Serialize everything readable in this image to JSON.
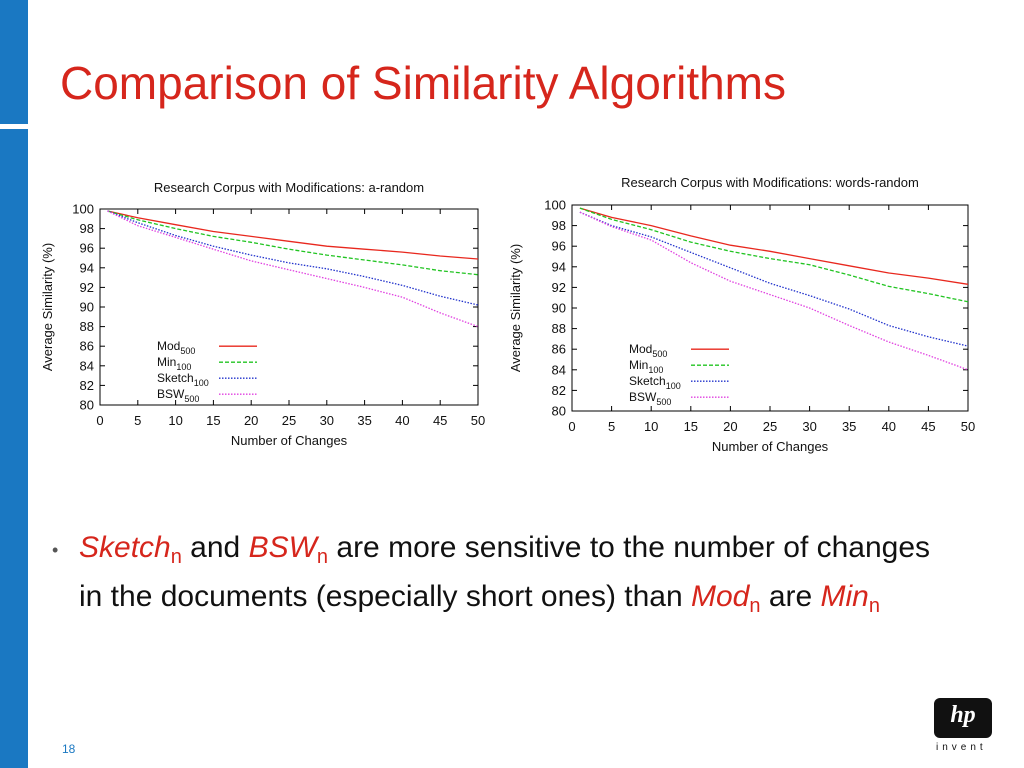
{
  "slide": {
    "title": "Comparison of Similarity Algorithms",
    "page_number": "18"
  },
  "bullet": {
    "sketch": "Sketch",
    "n1": "n",
    "t_and": " and ",
    "bsw": "BSW",
    "n2": "n",
    "t_rest": "  are more sensitive to the number of changes in the documents (especially short ones) than ",
    "mod": "Mod",
    "n3": "n",
    "t_are": " are ",
    "min": "Min",
    "n4": "n"
  },
  "logo": {
    "letters": "hp",
    "tagline": "invent"
  },
  "colors": {
    "title": "#d6261c",
    "sidebar": "#1a78c2",
    "emphasis": "#d6261c"
  },
  "chart_data": [
    {
      "type": "line",
      "title": "Research Corpus with Modifications: a-random",
      "xlabel": "Number of  Changes",
      "ylabel": "Average Similarity (%)",
      "xlim": [
        0,
        50
      ],
      "ylim": [
        80,
        100
      ],
      "xticks": [
        0,
        5,
        10,
        15,
        20,
        25,
        30,
        35,
        40,
        45,
        50
      ],
      "yticks": [
        80,
        82,
        84,
        86,
        88,
        90,
        92,
        94,
        96,
        98,
        100
      ],
      "grid": false,
      "legend_position": "left",
      "x": [
        1,
        5,
        10,
        15,
        20,
        25,
        30,
        35,
        40,
        45,
        50
      ],
      "series": [
        {
          "name": "Mod",
          "subscript": "500",
          "color": "#e8281e",
          "dash": "solid",
          "values": [
            99.8,
            99.1,
            98.4,
            97.7,
            97.2,
            96.7,
            96.2,
            95.9,
            95.6,
            95.2,
            94.9
          ]
        },
        {
          "name": "Min",
          "subscript": "100",
          "color": "#22c422",
          "dash": "dashed",
          "values": [
            99.8,
            98.9,
            98.0,
            97.2,
            96.6,
            95.9,
            95.3,
            94.8,
            94.3,
            93.7,
            93.3
          ]
        },
        {
          "name": "Sketch",
          "subscript": "100",
          "color": "#2233cc",
          "dash": "dotted",
          "values": [
            99.8,
            98.6,
            97.3,
            96.2,
            95.3,
            94.5,
            93.9,
            93.1,
            92.2,
            91.1,
            90.2
          ]
        },
        {
          "name": "BSW",
          "subscript": "500",
          "color": "#e040e0",
          "dash": "dotted",
          "values": [
            99.8,
            98.3,
            97.1,
            95.9,
            94.7,
            93.8,
            92.9,
            92.0,
            91.0,
            89.4,
            88.0
          ]
        }
      ]
    },
    {
      "type": "line",
      "title": "Research Corpus with Modifications: words-random",
      "xlabel": "Number of  Changes",
      "ylabel": "Average Similarity (%)",
      "xlim": [
        0,
        50
      ],
      "ylim": [
        80,
        100
      ],
      "xticks": [
        0,
        5,
        10,
        15,
        20,
        25,
        30,
        35,
        40,
        45,
        50
      ],
      "yticks": [
        80,
        82,
        84,
        86,
        88,
        90,
        92,
        94,
        96,
        98,
        100
      ],
      "grid": false,
      "legend_position": "left",
      "x": [
        1,
        5,
        10,
        15,
        20,
        25,
        30,
        35,
        40,
        45,
        50
      ],
      "series": [
        {
          "name": "Mod",
          "subscript": "500",
          "color": "#e8281e",
          "dash": "solid",
          "values": [
            99.7,
            98.8,
            98.0,
            97.0,
            96.1,
            95.5,
            94.8,
            94.1,
            93.4,
            92.9,
            92.3
          ]
        },
        {
          "name": "Min",
          "subscript": "100",
          "color": "#22c422",
          "dash": "dashed",
          "values": [
            99.7,
            98.6,
            97.6,
            96.4,
            95.5,
            94.8,
            94.2,
            93.2,
            92.1,
            91.4,
            90.6
          ]
        },
        {
          "name": "Sketch",
          "subscript": "100",
          "color": "#2233cc",
          "dash": "dotted",
          "values": [
            99.3,
            98.0,
            96.9,
            95.4,
            93.9,
            92.4,
            91.2,
            89.9,
            88.3,
            87.2,
            86.3
          ]
        },
        {
          "name": "BSW",
          "subscript": "500",
          "color": "#e040e0",
          "dash": "dotted",
          "values": [
            99.3,
            97.9,
            96.6,
            94.4,
            92.6,
            91.3,
            90.0,
            88.3,
            86.7,
            85.4,
            84.0
          ]
        }
      ]
    }
  ]
}
